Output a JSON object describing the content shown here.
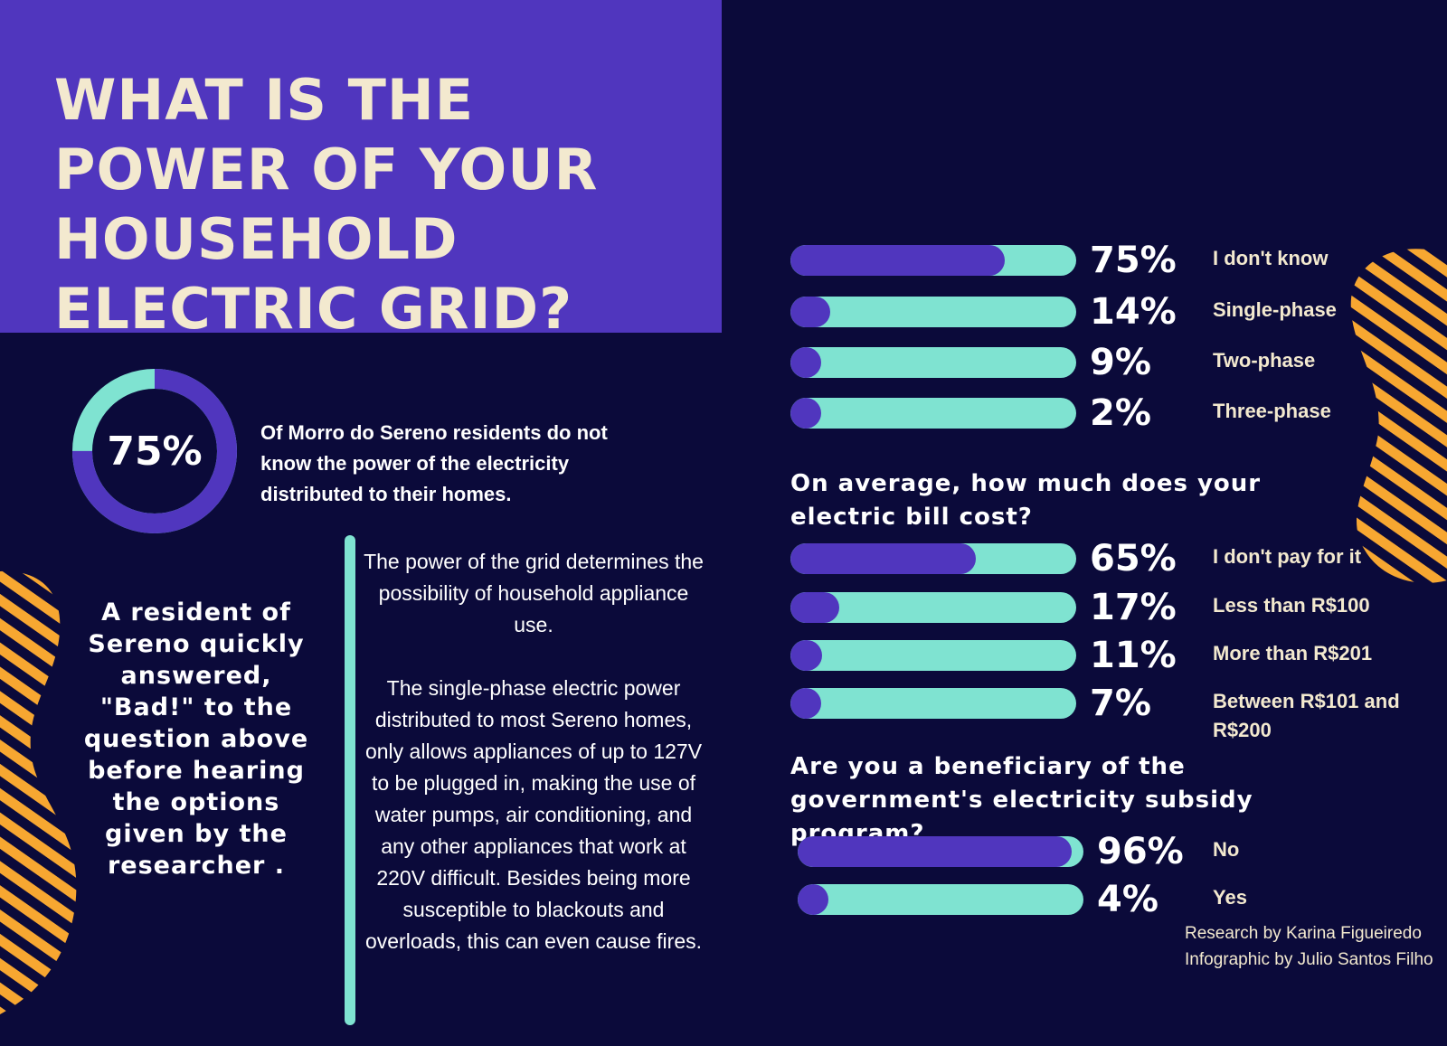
{
  "title": "WHAT IS THE POWER OF YOUR HOUSEHOLD ELECTRIC GRID?",
  "donut": {
    "value_label": "75%",
    "value": 75,
    "description": "Of Morro do Sereno residents do not know the power of the electricity distributed to their homes."
  },
  "quote": "A resident of Sereno quickly answered, \"Bad!\" to the question above before hearing the options given by the researcher .",
  "body_paragraphs": [
    "The power of the grid determines the possibility of household appliance use.",
    "The single-phase electric power distributed to most Sereno homes, only allows appliances of up to 127V to be plugged in, making the use of water pumps, air conditioning, and any other appliances that work at 220V difficult. Besides being more susceptible to blackouts and overloads, this can even cause fires."
  ],
  "questions": {
    "q2": "On average, how much does your electric bill cost?",
    "q3": "Are you a beneficiary of the government's electricity subsidy program?"
  },
  "credits": {
    "research": "Research by Karina Figueiredo",
    "infographic": "Infographic by Julio Santos Filho"
  },
  "colors": {
    "background": "#0b0a3a",
    "purple": "#5036be",
    "teal": "#7fe3d1",
    "cream": "#f3e9cf",
    "orange": "#f7a731"
  },
  "chart_data": [
    {
      "type": "bar",
      "orientation": "horizontal",
      "title": "WHAT IS THE POWER OF YOUR HOUSEHOLD ELECTRIC GRID?",
      "categories": [
        "I don't know",
        "Single-phase",
        "Two-phase",
        "Three-phase"
      ],
      "values": [
        75,
        14,
        9,
        2
      ],
      "value_labels": [
        "75%",
        "14%",
        "9%",
        "2%"
      ],
      "unit": "%",
      "xlim": [
        0,
        100
      ]
    },
    {
      "type": "bar",
      "orientation": "horizontal",
      "title": "On average, how much does your electric bill cost?",
      "categories": [
        "I don't pay for it",
        "Less than R$100",
        "More than R$201",
        "Between R$101 and R$200"
      ],
      "values": [
        65,
        17,
        11,
        7
      ],
      "value_labels": [
        "65%",
        "17%",
        "11%",
        "7%"
      ],
      "unit": "%",
      "xlim": [
        0,
        100
      ]
    },
    {
      "type": "bar",
      "orientation": "horizontal",
      "title": "Are you a beneficiary of the government's electricity subsidy program?",
      "categories": [
        "No",
        "Yes"
      ],
      "values": [
        96,
        4
      ],
      "value_labels": [
        "96%",
        "4%"
      ],
      "unit": "%",
      "xlim": [
        0,
        100
      ]
    }
  ]
}
